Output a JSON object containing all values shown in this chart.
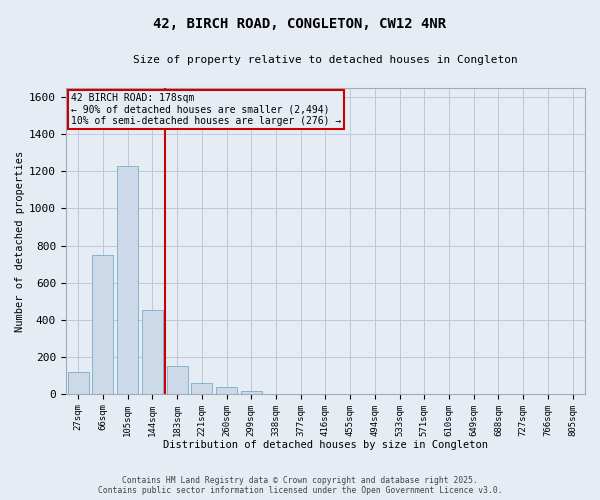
{
  "title_line1": "42, BIRCH ROAD, CONGLETON, CW12 4NR",
  "title_line2": "Size of property relative to detached houses in Congleton",
  "xlabel": "Distribution of detached houses by size in Congleton",
  "ylabel": "Number of detached properties",
  "categories": [
    "27sqm",
    "66sqm",
    "105sqm",
    "144sqm",
    "183sqm",
    "221sqm",
    "260sqm",
    "299sqm",
    "338sqm",
    "377sqm",
    "416sqm",
    "455sqm",
    "494sqm",
    "533sqm",
    "571sqm",
    "610sqm",
    "649sqm",
    "688sqm",
    "727sqm",
    "766sqm",
    "805sqm"
  ],
  "values": [
    120,
    750,
    1230,
    450,
    150,
    60,
    35,
    15,
    0,
    0,
    0,
    0,
    0,
    0,
    0,
    0,
    0,
    0,
    0,
    0,
    0
  ],
  "bar_color": "#ccd9e9",
  "bar_edge_color": "#7aaac8",
  "grid_color": "#bcc8d8",
  "background_color": "#e6ecf4",
  "vline_bar_index": 4,
  "vline_color": "#cc0000",
  "annotation_text": "42 BIRCH ROAD: 178sqm\n← 90% of detached houses are smaller (2,494)\n10% of semi-detached houses are larger (276) →",
  "annotation_box_edgecolor": "#cc0000",
  "ylim": [
    0,
    1650
  ],
  "yticks": [
    0,
    200,
    400,
    600,
    800,
    1000,
    1200,
    1400,
    1600
  ],
  "footer_line1": "Contains HM Land Registry data © Crown copyright and database right 2025.",
  "footer_line2": "Contains public sector information licensed under the Open Government Licence v3.0."
}
